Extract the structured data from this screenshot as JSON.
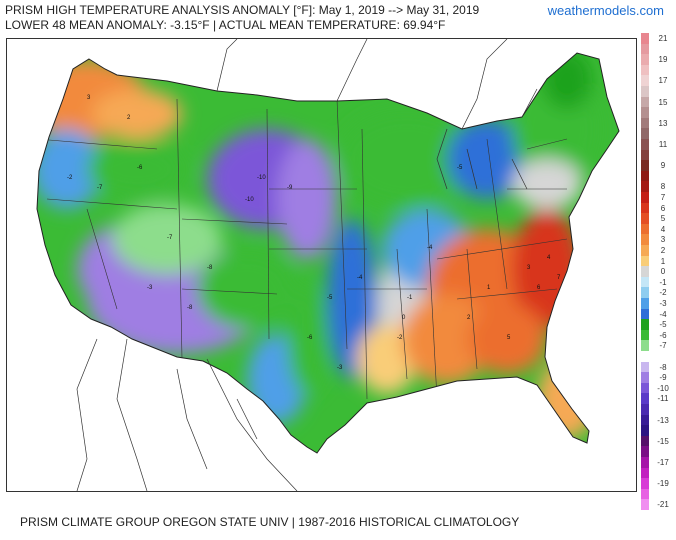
{
  "header": {
    "title": "PRISM HIGH TEMPERATURE ANALYSIS ANOMALY [°F]: May 1, 2019 --> May 31, 2019",
    "subtitle": "LOWER 48 MEAN ANOMALY: -3.15°F | ACTUAL MEAN TEMPERATURE: 69.94°F",
    "site": "weathermodels.com"
  },
  "footer": "PRISM CLIMATE GROUP OREGON STATE UNIV | 1987-2016 HISTORICAL CLIMATOLOGY",
  "legend": [
    {
      "label": "21",
      "color": "#e8868f"
    },
    {
      "label": "",
      "color": "#e59aa0"
    },
    {
      "label": "19",
      "color": "#eaabae"
    },
    {
      "label": "",
      "color": "#efc0c1"
    },
    {
      "label": "17",
      "color": "#efd3d3"
    },
    {
      "label": "",
      "color": "#dbc6c6"
    },
    {
      "label": "15",
      "color": "#c6a8a8"
    },
    {
      "label": "",
      "color": "#b49090"
    },
    {
      "label": "13",
      "color": "#a27b7b"
    },
    {
      "label": "",
      "color": "#916868"
    },
    {
      "label": "11",
      "color": "#8a5353"
    },
    {
      "label": "",
      "color": "#84423f"
    },
    {
      "label": "9",
      "color": "#7a2b23"
    },
    {
      "label": "",
      "color": "#8f1a14"
    },
    {
      "label": "8",
      "color": "#a41a14"
    },
    {
      "label": "7",
      "color": "#c41f16"
    },
    {
      "label": "6",
      "color": "#d8351c"
    },
    {
      "label": "5",
      "color": "#e44f24"
    },
    {
      "label": "4",
      "color": "#ec6e2e"
    },
    {
      "label": "3",
      "color": "#f28a3c"
    },
    {
      "label": "2",
      "color": "#f6a954"
    },
    {
      "label": "1",
      "color": "#f9cd78"
    },
    {
      "label": "0",
      "color": "#d6d6d6"
    },
    {
      "label": "-1",
      "color": "#c4e6f7"
    },
    {
      "label": "-2",
      "color": "#8fcdf0"
    },
    {
      "label": "-3",
      "color": "#4f9fe8"
    },
    {
      "label": "-4",
      "color": "#2f6fd8"
    },
    {
      "label": "-5",
      "color": "#1fa21f"
    },
    {
      "label": "-6",
      "color": "#3bbb35"
    },
    {
      "label": "-7",
      "color": "#8ddd8c"
    },
    {
      "label": "",
      "color": "#ffffff"
    },
    {
      "label": "-8",
      "color": "#c9b7ef"
    },
    {
      "label": "-9",
      "color": "#9f7ee3"
    },
    {
      "label": "-10",
      "color": "#7b57d8"
    },
    {
      "label": "-11",
      "color": "#5a3ac8"
    },
    {
      "label": "",
      "color": "#4a2ab0"
    },
    {
      "label": "-13",
      "color": "#381c96"
    },
    {
      "label": "",
      "color": "#2c1483"
    },
    {
      "label": "-15",
      "color": "#55106a"
    },
    {
      "label": "",
      "color": "#7a0e86"
    },
    {
      "label": "-17",
      "color": "#a514a8"
    },
    {
      "label": "",
      "color": "#c21fc0"
    },
    {
      "label": "-19",
      "color": "#d83bd6"
    },
    {
      "label": "",
      "color": "#e762e3"
    },
    {
      "label": "-21",
      "color": "#f08ef0"
    }
  ],
  "map_labels": [
    {
      "text": "-10"
    },
    {
      "text": "-10"
    },
    {
      "text": "-9"
    },
    {
      "text": "-8"
    },
    {
      "text": "-7"
    },
    {
      "text": "-6"
    },
    {
      "text": "-5"
    },
    {
      "text": "-4"
    },
    {
      "text": "-3"
    },
    {
      "text": "-2"
    },
    {
      "text": "-1"
    },
    {
      "text": "0"
    },
    {
      "text": "1"
    },
    {
      "text": "2"
    },
    {
      "text": "3"
    },
    {
      "text": "4"
    },
    {
      "text": "5"
    },
    {
      "text": "6"
    },
    {
      "text": "7"
    },
    {
      "text": "-6"
    },
    {
      "text": "-7"
    },
    {
      "text": "-5"
    },
    {
      "text": "-4"
    },
    {
      "text": "-3"
    },
    {
      "text": "3"
    },
    {
      "text": "2"
    },
    {
      "text": "-2"
    },
    {
      "text": "-8"
    }
  ],
  "colors": {
    "background_land": "#ffffff",
    "border": "#333333"
  }
}
